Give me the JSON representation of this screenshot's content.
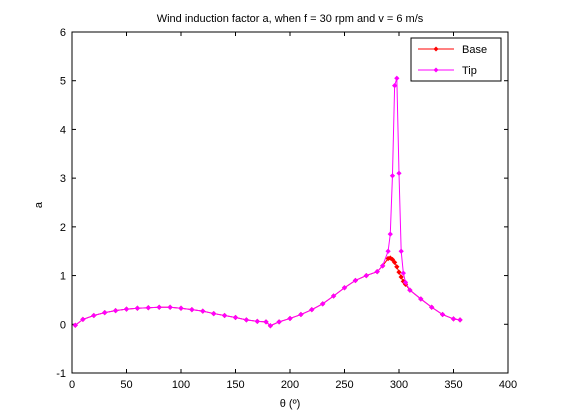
{
  "chart_data": {
    "type": "line",
    "title": "Wind induction factor a, when f = 30 rpm and v = 6 m/s",
    "xlabel": "θ (º)",
    "ylabel": "a",
    "xlim": [
      0,
      400
    ],
    "ylim": [
      -1,
      6
    ],
    "xticks": [
      0,
      50,
      100,
      150,
      200,
      250,
      300,
      350,
      400
    ],
    "yticks": [
      -1,
      0,
      1,
      2,
      3,
      4,
      5,
      6
    ],
    "grid": false,
    "legend_position": "top-right",
    "series": [
      {
        "name": "Base",
        "color": "#ff0000",
        "marker": "diamond",
        "x": [
          3,
          10,
          20,
          30,
          40,
          50,
          60,
          70,
          80,
          90,
          100,
          110,
          120,
          130,
          140,
          150,
          160,
          170,
          178,
          182,
          190,
          200,
          210,
          220,
          230,
          240,
          250,
          260,
          270,
          280,
          285,
          290,
          292,
          294,
          296,
          298,
          300,
          302,
          304,
          306,
          310,
          320,
          330,
          340,
          350,
          356
        ],
        "y": [
          -0.02,
          0.1,
          0.18,
          0.24,
          0.28,
          0.31,
          0.33,
          0.34,
          0.35,
          0.35,
          0.33,
          0.3,
          0.27,
          0.22,
          0.18,
          0.14,
          0.09,
          0.06,
          0.05,
          -0.03,
          0.05,
          0.12,
          0.2,
          0.3,
          0.42,
          0.58,
          0.75,
          0.9,
          1.0,
          1.08,
          1.2,
          1.35,
          1.36,
          1.33,
          1.27,
          1.18,
          1.07,
          0.97,
          0.88,
          0.82,
          0.7,
          0.52,
          0.35,
          0.2,
          0.11,
          0.09
        ]
      },
      {
        "name": "Tip",
        "color": "#ff00ff",
        "marker": "diamond",
        "x": [
          3,
          10,
          20,
          30,
          40,
          50,
          60,
          70,
          80,
          90,
          100,
          110,
          120,
          130,
          140,
          150,
          160,
          170,
          178,
          182,
          190,
          200,
          210,
          220,
          230,
          240,
          250,
          260,
          270,
          280,
          285,
          290,
          292,
          294,
          296,
          298,
          300,
          302,
          304,
          306,
          310,
          320,
          330,
          340,
          350,
          356
        ],
        "y": [
          -0.02,
          0.1,
          0.18,
          0.24,
          0.28,
          0.31,
          0.33,
          0.34,
          0.35,
          0.35,
          0.33,
          0.3,
          0.27,
          0.22,
          0.18,
          0.14,
          0.09,
          0.06,
          0.05,
          -0.03,
          0.05,
          0.12,
          0.2,
          0.3,
          0.42,
          0.58,
          0.75,
          0.9,
          1.0,
          1.08,
          1.2,
          1.5,
          1.85,
          3.05,
          4.9,
          5.05,
          3.1,
          1.5,
          1.05,
          0.86,
          0.7,
          0.52,
          0.35,
          0.2,
          0.11,
          0.09
        ]
      }
    ]
  }
}
